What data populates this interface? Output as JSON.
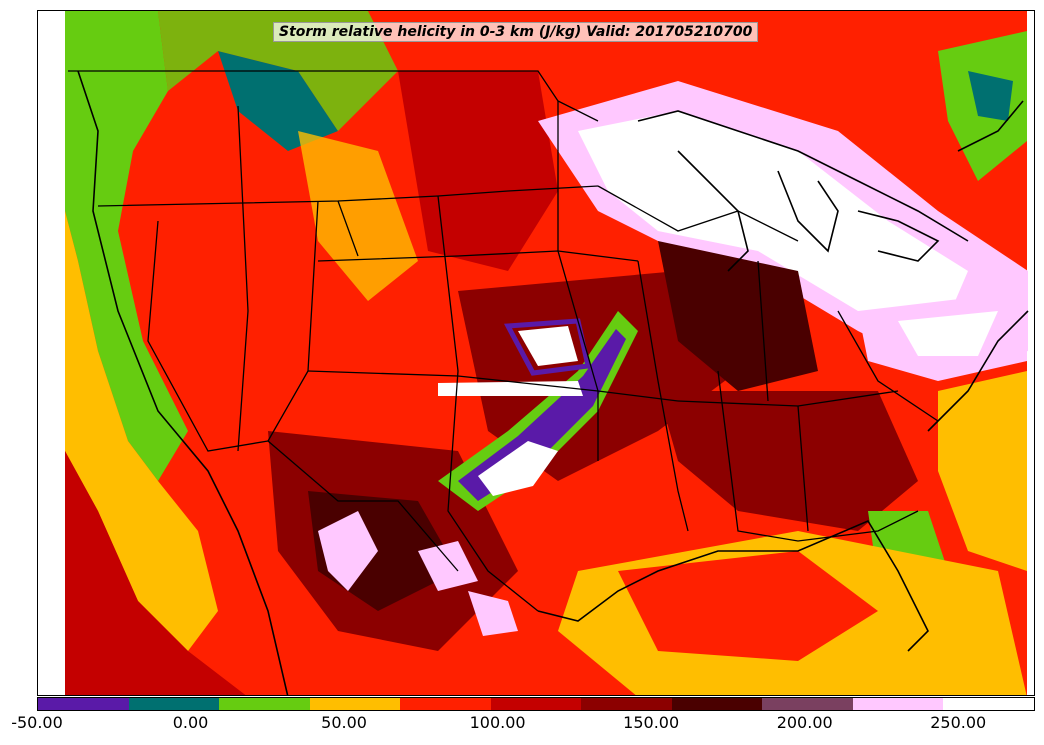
{
  "title": "Storm relative helicity in 0-3 km (J/kg) Valid: 201705210700",
  "colorbar": {
    "min": -50,
    "max": 275,
    "step": 25,
    "colors": [
      "#5a1aa8",
      "#007070",
      "#66cc11",
      "#ffbe00",
      "#ff2000",
      "#c40000",
      "#8c0000",
      "#4a0000",
      "#7a4060",
      "#ffc8ff",
      "#ffffff"
    ],
    "tick_labels": [
      "-50.00",
      "0.00",
      "50.00",
      "100.00",
      "150.00",
      "200.00",
      "250.00"
    ],
    "tick_values": [
      -50,
      0,
      50,
      100,
      150,
      200,
      250
    ]
  }
}
